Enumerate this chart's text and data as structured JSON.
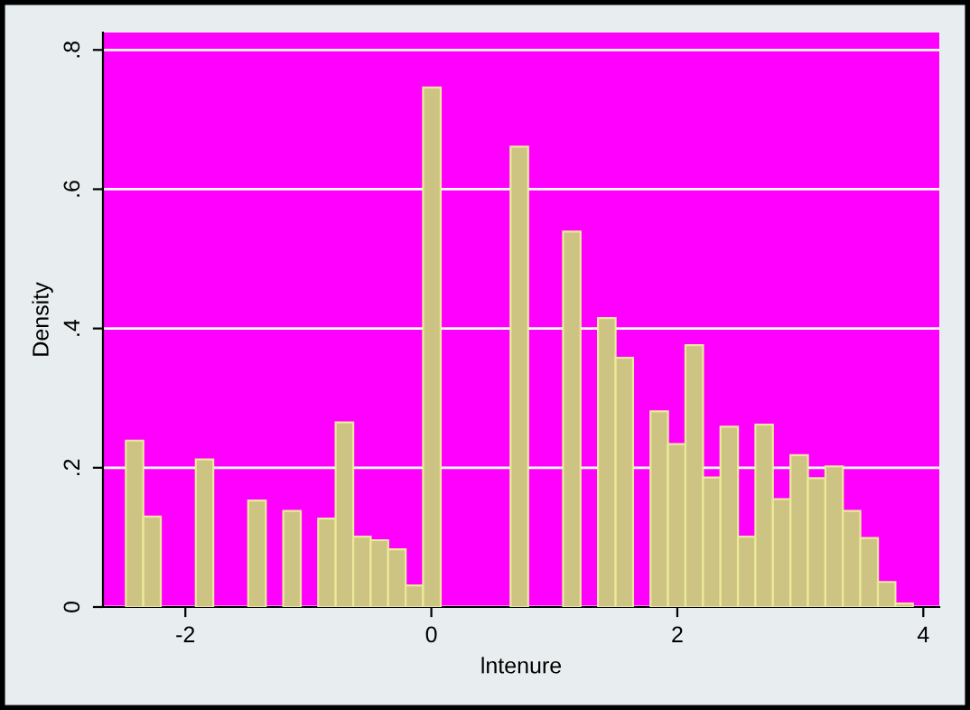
{
  "chart_data": {
    "type": "histogram",
    "xlabel": "lntenure",
    "ylabel": "Density",
    "bins": [
      -2.484,
      -2.342,
      -2.2,
      -2.057,
      -1.915,
      -1.773,
      -1.631,
      -1.489,
      -1.346,
      -1.204,
      -1.062,
      -0.92,
      -0.778,
      -0.635,
      -0.493,
      -0.351,
      -0.209,
      -0.067,
      0.076,
      0.218,
      0.36,
      0.502,
      0.644,
      0.787,
      0.929,
      1.071,
      1.213,
      1.355,
      1.498,
      1.64,
      1.782,
      1.924,
      2.066,
      2.209,
      2.351,
      2.493,
      2.635,
      2.777,
      2.92,
      3.062,
      3.204,
      3.346,
      3.488,
      3.631,
      3.773,
      3.915
    ],
    "values": [
      0.239,
      0.13,
      0,
      0,
      0.212,
      0,
      0,
      0.153,
      0,
      0.138,
      0,
      0.127,
      0.265,
      0.101,
      0.096,
      0.083,
      0.031,
      0.746,
      0,
      0,
      0,
      0,
      0.661,
      0,
      0,
      0.539,
      0,
      0.415,
      0.358,
      0,
      0.281,
      0.234,
      0.376,
      0.186,
      0.259,
      0.101,
      0.262,
      0.155,
      0.218,
      0.185,
      0.202,
      0.138,
      0.099,
      0.036,
      0.005
    ],
    "color": "#cdc382",
    "xlim": [
      -2.67,
      4.13
    ],
    "xticks": [
      -2,
      0,
      2,
      4
    ],
    "ylim": [
      0,
      0.825
    ],
    "yticks": [
      0,
      {
        "value": 0.2,
        "label": ".2"
      },
      {
        "value": 0.4,
        "label": ".4"
      },
      {
        "value": 0.6,
        "label": ".6"
      },
      {
        "value": 0.8,
        "label": ".8"
      }
    ],
    "grid": "y"
  }
}
